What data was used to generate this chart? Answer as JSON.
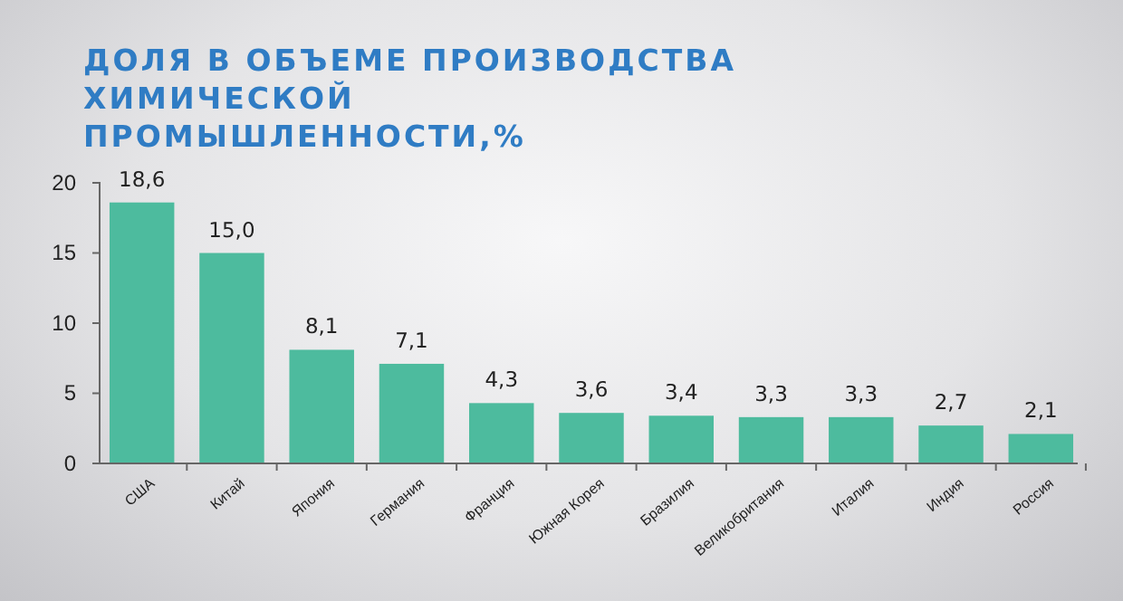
{
  "chart_data": {
    "type": "bar",
    "title": "ДОЛЯ В ОБЪЕМЕ ПРОИЗВОДСТВА ХИМИЧЕСКОЙ ПРОМЫШЛЕННОСТИ,%",
    "categories": [
      "США",
      "Китай",
      "Япония",
      "Германия",
      "Франция",
      "Южная Корея",
      "Бразилия",
      "Великобритания",
      "Италия",
      "Индия",
      "Россия"
    ],
    "values": [
      18.6,
      15.0,
      8.1,
      7.1,
      4.3,
      3.6,
      3.4,
      3.3,
      3.3,
      2.7,
      2.1
    ],
    "value_labels": [
      "18,6",
      "15,0",
      "8,1",
      "7,1",
      "4,3",
      "3,6",
      "3,4",
      "3,3",
      "3,3",
      "2,7",
      "2,1"
    ],
    "color": "#4dbb9e",
    "ylim": [
      0,
      20
    ],
    "yticks": [
      0,
      5,
      10,
      15,
      20
    ],
    "grid": false
  }
}
